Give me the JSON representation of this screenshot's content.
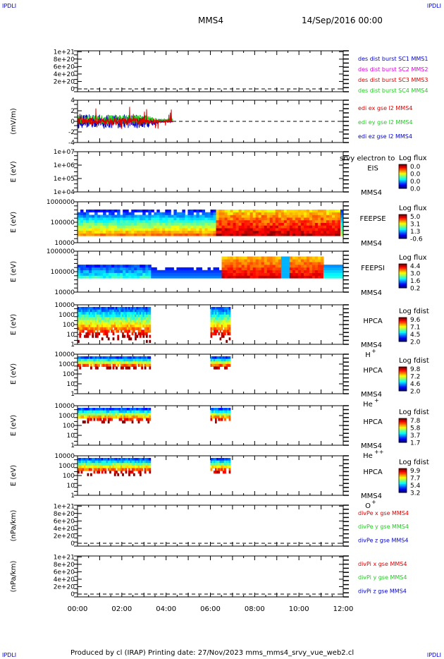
{
  "corner_labels": {
    "top_left": "IPDLI",
    "top_right": "IPDLI",
    "bottom_left": "IPDLI",
    "bottom_right": "IPDLI"
  },
  "header": {
    "spacecraft": "MMS4",
    "date": "14/Sep/2016 00:00"
  },
  "footer": {
    "text": "Produced by cl (IRAP)   Printing date: 27/Nov/2023   mms_mms4_srvy_vue_web2.cl"
  },
  "colors": {
    "red": "#dd0000",
    "green": "#22cc22",
    "blue": "#0000cc",
    "magenta": "#dd00dd"
  },
  "x_axis": {
    "range_hours": [
      0,
      12
    ],
    "ticks": [
      0,
      2,
      4,
      6,
      8,
      10,
      12
    ],
    "tick_labels": [
      "00:00",
      "02:00",
      "04:00",
      "06:00",
      "08:00",
      "10:00",
      "12:00"
    ]
  },
  "chart_data": [
    {
      "type": "line",
      "ylabel": "",
      "yticks": [
        "1e+21",
        "8e+20",
        "6e+20",
        "4e+20",
        "2e+20",
        "0"
      ],
      "ylim": [
        0,
        1.1e+21
      ],
      "dashed_zero": true,
      "legend": [
        {
          "name": "des dist burst SC1 MMS1",
          "color": "#0000cc"
        },
        {
          "name": "des dist burst SC2 MMS2",
          "color": "#dd00dd"
        },
        {
          "name": "des dist burst SC3 MMS3",
          "color": "#dd0000"
        },
        {
          "name": "des dist burst SC4 MMS4",
          "color": "#22cc22"
        }
      ]
    },
    {
      "type": "line",
      "ylabel": "(mV/m)",
      "yticks": [
        "4",
        "2",
        "0",
        "-2",
        "-4"
      ],
      "ylim": [
        -4,
        4
      ],
      "dashed_zero": true,
      "data_time_range_hours": [
        0,
        4.3
      ],
      "legend": [
        {
          "name": "edi ex gse l2 MMS4",
          "color": "#dd0000"
        },
        {
          "name": "edi ey gse l2 MMS4",
          "color": "#22cc22"
        },
        {
          "name": "edi ez gse l2 MMS4",
          "color": "#0000cc"
        }
      ]
    },
    {
      "type": "heatmap",
      "ylabel": "E (eV)",
      "yticks": [
        "1e+07",
        "1e+06",
        "1e+05",
        "1e+04"
      ],
      "instrument": [
        "EIS",
        "MMS4"
      ],
      "overlay_text": "srvy electron to",
      "colorbar": {
        "title": "Log flux",
        "labels": [
          "0.0",
          "0.0",
          "0.0",
          "0.0"
        ]
      }
    },
    {
      "type": "heatmap",
      "ylabel": "E (eV)",
      "yticks": [
        "1000000",
        "100000",
        "10000"
      ],
      "instrument": [
        "FEEPSE",
        "MMS4"
      ],
      "colorbar": {
        "title": "Log flux",
        "labels": [
          "5.0",
          "3.1",
          "1.3",
          "-0.6"
        ]
      }
    },
    {
      "type": "heatmap",
      "ylabel": "E (eV)",
      "yticks": [
        "1000000",
        "100000",
        "10000"
      ],
      "instrument": [
        "FEEPSI",
        "MMS4"
      ],
      "colorbar": {
        "title": "Log flux",
        "labels": [
          "4.4",
          "3.0",
          "1.6",
          "0.2"
        ]
      }
    },
    {
      "type": "heatmap",
      "ylabel": "E (eV)",
      "yticks": [
        "10000",
        "1000",
        "100",
        "10",
        "1"
      ],
      "instrument": [
        "HPCA",
        "MMS4"
      ],
      "species": "H",
      "species_sup": "+",
      "data_time_ranges_hours": [
        [
          0,
          3.3
        ],
        [
          6.0,
          6.9
        ]
      ],
      "colorbar": {
        "title": "Log fdist",
        "labels": [
          "9.6",
          "7.1",
          "4.5",
          "2.0"
        ]
      }
    },
    {
      "type": "heatmap",
      "ylabel": "E (eV)",
      "yticks": [
        "10000",
        "1000",
        "100",
        "10",
        "1"
      ],
      "instrument": [
        "HPCA",
        "MMS4"
      ],
      "species": "He",
      "species_sup": "+",
      "data_time_ranges_hours": [
        [
          0,
          3.3
        ],
        [
          6.0,
          6.9
        ]
      ],
      "colorbar": {
        "title": "Log fdist",
        "labels": [
          "9.8",
          "7.2",
          "4.6",
          "2.0"
        ]
      }
    },
    {
      "type": "heatmap",
      "ylabel": "E (eV)",
      "yticks": [
        "10000",
        "1000",
        "100",
        "10",
        "1"
      ],
      "instrument": [
        "HPCA",
        "MMS4"
      ],
      "species": "He",
      "species_sup": "++",
      "data_time_ranges_hours": [
        [
          0,
          3.3
        ],
        [
          6.0,
          6.9
        ]
      ],
      "colorbar": {
        "title": "Log fdist",
        "labels": [
          "7.8",
          "5.8",
          "3.7",
          "1.7"
        ]
      }
    },
    {
      "type": "heatmap",
      "ylabel": "E (eV)",
      "yticks": [
        "10000",
        "1000",
        "100",
        "10",
        "1"
      ],
      "instrument": [
        "HPCA",
        "MMS4"
      ],
      "species": "O",
      "species_sup": "+",
      "data_time_ranges_hours": [
        [
          0,
          3.3
        ],
        [
          6.0,
          6.9
        ]
      ],
      "colorbar": {
        "title": "Log fdist",
        "labels": [
          "9.9",
          "7.7",
          "5.4",
          "3.2"
        ]
      }
    },
    {
      "type": "line",
      "ylabel": "(nPa/km)",
      "yticks": [
        "1e+21",
        "8e+20",
        "6e+20",
        "4e+20",
        "2e+20",
        "0"
      ],
      "ylim": [
        0,
        1.1e+21
      ],
      "dashed_zero": true,
      "legend": [
        {
          "name": "divPe x gse MMS4",
          "color": "#dd0000"
        },
        {
          "name": "divPe y gse MMS4",
          "color": "#22cc22"
        },
        {
          "name": "divPe z gse MMS4",
          "color": "#0000cc"
        }
      ]
    },
    {
      "type": "line",
      "ylabel": "(nPa/km)",
      "yticks": [
        "1e+21",
        "8e+20",
        "6e+20",
        "4e+20",
        "2e+20",
        "0"
      ],
      "ylim": [
        0,
        1.1e+21
      ],
      "dashed_zero": true,
      "legend": [
        {
          "name": "divPi x gse MMS4",
          "color": "#dd0000"
        },
        {
          "name": "divPi y gse MMS4",
          "color": "#22cc22"
        },
        {
          "name": "divPi z gse MMS4",
          "color": "#0000cc"
        }
      ]
    }
  ]
}
